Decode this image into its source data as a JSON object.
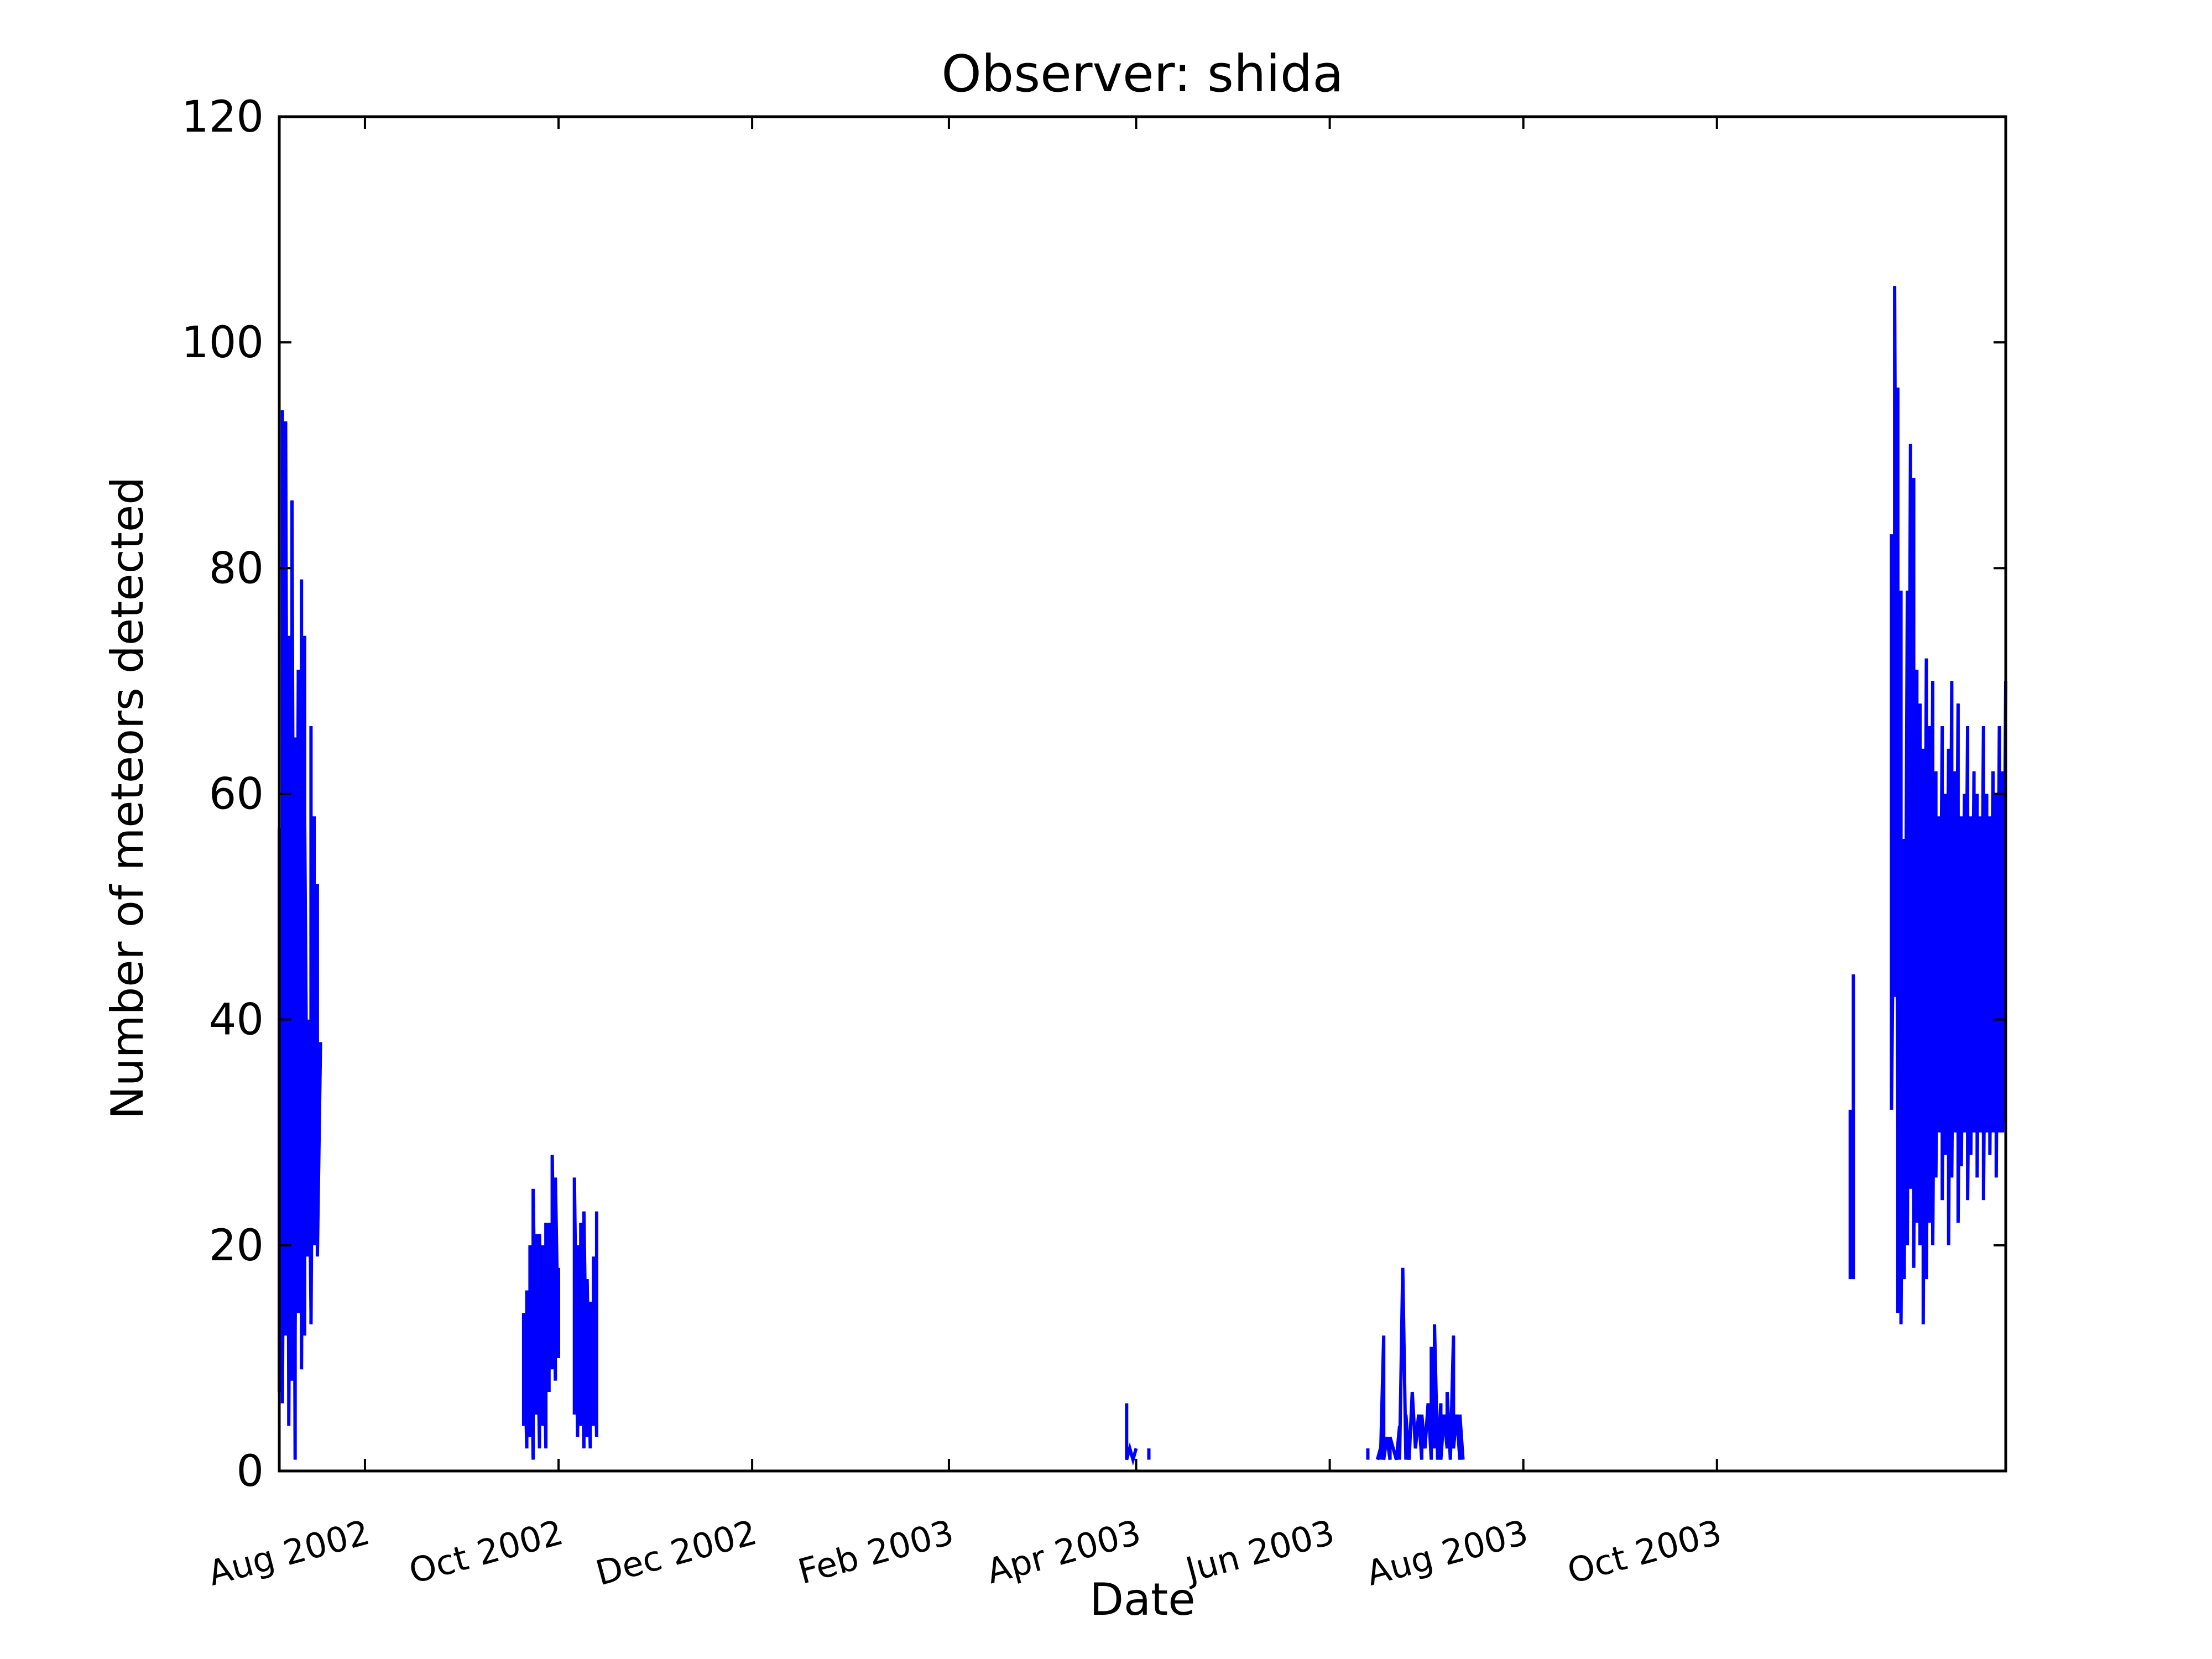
{
  "chart_data": {
    "type": "line",
    "title": "Observer: shida",
    "xlabel": "Date",
    "ylabel": "Number of meteors detected",
    "xlim": [
      "2002-07-05",
      "2003-12-31"
    ],
    "ylim": [
      0,
      120
    ],
    "y_ticks": [
      0,
      20,
      40,
      60,
      80,
      100,
      120
    ],
    "x_ticks": [
      {
        "date": "2002-08-01",
        "label": "Aug 2002"
      },
      {
        "date": "2002-10-01",
        "label": "Oct 2002"
      },
      {
        "date": "2002-12-01",
        "label": "Dec 2002"
      },
      {
        "date": "2003-02-01",
        "label": "Feb 2003"
      },
      {
        "date": "2003-04-01",
        "label": "Apr 2003"
      },
      {
        "date": "2003-06-01",
        "label": "Jun 2003"
      },
      {
        "date": "2003-08-01",
        "label": "Aug 2003"
      },
      {
        "date": "2003-10-01",
        "label": "Oct 2003"
      }
    ],
    "grid": false,
    "line_color": "#0000ff",
    "series": [
      {
        "x": [
          "2002-07-05",
          "2002-07-05",
          "2002-07-06",
          "2002-07-06",
          "2002-07-06",
          "2002-07-07",
          "2002-07-07",
          "2002-07-07",
          "2002-07-08",
          "2002-07-08",
          "2002-07-08",
          "2002-07-09",
          "2002-07-09",
          "2002-07-09",
          "2002-07-10",
          "2002-07-10",
          "2002-07-10",
          "2002-07-11",
          "2002-07-11",
          "2002-07-11",
          "2002-07-12",
          "2002-07-12",
          "2002-07-12",
          "2002-07-13",
          "2002-07-13",
          "2002-07-13",
          "2002-07-14",
          "2002-07-14",
          "2002-07-15",
          "2002-07-15",
          "2002-07-15",
          "2002-07-16",
          "2002-07-16",
          "2002-07-17",
          "2002-07-17",
          "2002-07-18"
        ],
        "y": [
          7,
          57,
          9,
          94,
          6,
          65,
          12,
          93,
          7,
          74,
          4,
          64,
          8,
          86,
          1,
          65,
          12,
          70,
          14,
          71,
          13,
          79,
          9,
          74,
          12,
          58,
          19,
          40,
          14,
          66,
          13,
          58,
          20,
          52,
          19,
          38
        ]
      },
      {
        "x": [
          "2002-09-20",
          "2002-09-20",
          "2002-09-21",
          "2002-09-21",
          "2002-09-22",
          "2002-09-22",
          "2002-09-22",
          "2002-09-23",
          "2002-09-23",
          "2002-09-24",
          "2002-09-24",
          "2002-09-25",
          "2002-09-25",
          "2002-09-26",
          "2002-09-26",
          "2002-09-27",
          "2002-09-27",
          "2002-09-28",
          "2002-09-28",
          "2002-09-29",
          "2002-09-29",
          "2002-09-30",
          "2002-09-30",
          "2002-10-01",
          "2002-10-01"
        ],
        "y": [
          4,
          14,
          2,
          16,
          3,
          12,
          20,
          1,
          25,
          5,
          21,
          2,
          21,
          4,
          20,
          2,
          22,
          7,
          22,
          9,
          28,
          8,
          26,
          10,
          18
        ]
      },
      {
        "x": [
          "2002-10-06",
          "2002-10-06",
          "2002-10-07",
          "2002-10-07",
          "2002-10-08",
          "2002-10-08",
          "2002-10-09",
          "2002-10-09",
          "2002-10-10",
          "2002-10-10",
          "2002-10-11",
          "2002-10-11",
          "2002-10-12",
          "2002-10-12",
          "2002-10-13",
          "2002-10-13",
          "2002-10-13"
        ],
        "y": [
          5,
          26,
          3,
          20,
          4,
          22,
          2,
          23,
          3,
          17,
          2,
          15,
          4,
          19,
          3,
          23,
          8
        ]
      },
      {
        "x": [
          "2003-03-29",
          "2003-03-29",
          "2003-03-29",
          "2003-03-30",
          "2003-03-31",
          "2003-04-01"
        ],
        "y": [
          1,
          6,
          1,
          2,
          1,
          2
        ]
      },
      {
        "x": [
          "2003-04-05",
          "2003-04-05"
        ],
        "y": [
          2,
          1
        ]
      },
      {
        "x": [
          "2003-06-13",
          "2003-06-13"
        ],
        "y": [
          2,
          1
        ]
      },
      {
        "x": [
          "2003-06-16",
          "2003-06-17",
          "2003-06-17",
          "2003-06-18",
          "2003-06-18",
          "2003-06-19",
          "2003-06-20",
          "2003-06-20",
          "2003-06-21",
          "2003-06-22",
          "2003-06-23",
          "2003-06-23",
          "2003-06-24",
          "2003-06-25",
          "2003-06-25",
          "2003-06-26",
          "2003-06-27",
          "2003-06-28",
          "2003-06-29",
          "2003-06-30",
          "2003-06-30",
          "2003-07-01",
          "2003-07-02",
          "2003-07-03",
          "2003-07-03",
          "2003-07-04",
          "2003-07-04",
          "2003-07-05",
          "2003-07-06",
          "2003-07-06",
          "2003-07-07",
          "2003-07-08",
          "2003-07-08",
          "2003-07-09",
          "2003-07-10",
          "2003-07-10",
          "2003-07-11",
          "2003-07-12",
          "2003-07-12",
          "2003-07-13"
        ],
        "y": [
          1,
          2,
          1,
          12,
          1,
          3,
          1,
          3,
          2,
          1,
          4,
          1,
          18,
          1,
          5,
          1,
          7,
          2,
          5,
          1,
          5,
          2,
          6,
          1,
          11,
          2,
          13,
          1,
          6,
          1,
          5,
          2,
          7,
          1,
          12,
          2,
          5,
          1,
          5,
          1
        ]
      },
      {
        "x": [
          "2003-11-12",
          "2003-11-12",
          "2003-11-13",
          "2003-11-13"
        ],
        "y": [
          17,
          32,
          17,
          44
        ]
      },
      {
        "x": [
          "2003-11-25",
          "2003-11-25",
          "2003-11-25",
          "2003-11-26",
          "2003-11-26",
          "2003-11-26",
          "2003-11-27",
          "2003-11-27",
          "2003-11-27",
          "2003-11-28",
          "2003-11-28",
          "2003-11-29",
          "2003-11-29",
          "2003-11-30",
          "2003-11-30",
          "2003-12-01",
          "2003-12-01",
          "2003-12-02",
          "2003-12-02",
          "2003-12-03",
          "2003-12-03",
          "2003-12-04",
          "2003-12-04",
          "2003-12-05",
          "2003-12-05",
          "2003-12-06",
          "2003-12-06",
          "2003-12-07",
          "2003-12-07",
          "2003-12-08",
          "2003-12-08",
          "2003-12-09",
          "2003-12-09",
          "2003-12-10",
          "2003-12-10",
          "2003-12-11",
          "2003-12-11",
          "2003-12-12",
          "2003-12-12",
          "2003-12-13",
          "2003-12-13",
          "2003-12-14",
          "2003-12-14",
          "2003-12-15",
          "2003-12-15",
          "2003-12-16",
          "2003-12-16",
          "2003-12-17",
          "2003-12-17",
          "2003-12-18",
          "2003-12-18",
          "2003-12-19",
          "2003-12-19",
          "2003-12-20",
          "2003-12-20",
          "2003-12-21",
          "2003-12-21",
          "2003-12-22",
          "2003-12-22",
          "2003-12-23",
          "2003-12-23",
          "2003-12-24",
          "2003-12-24",
          "2003-12-25",
          "2003-12-25",
          "2003-12-26",
          "2003-12-26",
          "2003-12-27",
          "2003-12-27",
          "2003-12-28",
          "2003-12-28",
          "2003-12-29",
          "2003-12-29",
          "2003-12-30",
          "2003-12-30",
          "2003-12-31"
        ],
        "y": [
          38,
          83,
          32,
          61,
          42,
          105,
          30,
          96,
          14,
          78,
          13,
          56,
          17,
          78,
          20,
          91,
          25,
          88,
          18,
          71,
          22,
          68,
          20,
          64,
          13,
          72,
          17,
          66,
          22,
          70,
          20,
          62,
          26,
          58,
          30,
          66,
          24,
          60,
          28,
          64,
          20,
          70,
          26,
          62,
          30,
          68,
          22,
          58,
          27,
          60,
          30,
          66,
          24,
          58,
          28,
          62,
          30,
          60,
          26,
          58,
          30,
          66,
          24,
          60,
          30,
          58,
          28,
          62,
          30,
          60,
          26,
          66,
          30,
          62,
          30,
          70
        ]
      }
    ]
  }
}
